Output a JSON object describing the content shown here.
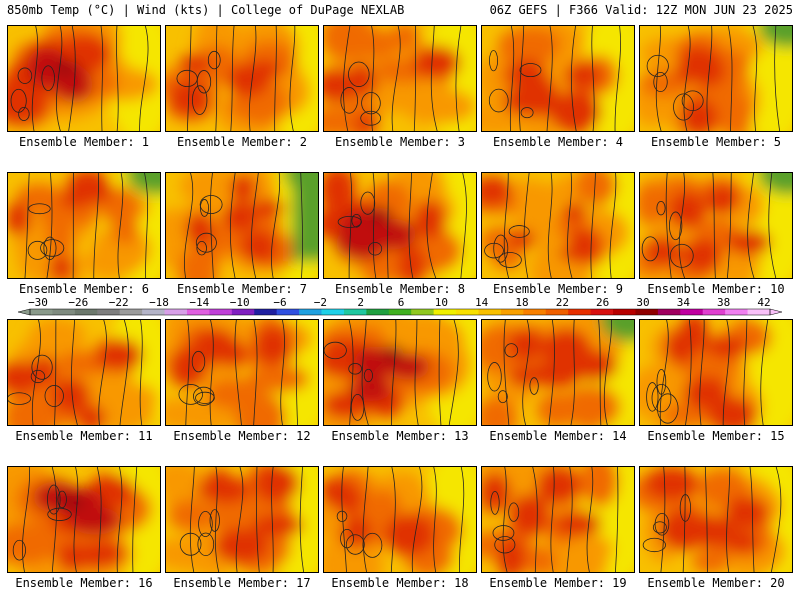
{
  "header": {
    "left": "850mb Temp (°C) | Wind (kts) | College of DuPage NEXLAB",
    "right": "06Z GEFS | F366 Valid: 12Z MON JUN 23 2025"
  },
  "caption_prefix": "Ensemble Member: ",
  "members": [
    1,
    2,
    3,
    4,
    5,
    6,
    7,
    8,
    9,
    10,
    11,
    12,
    13,
    14,
    15,
    16,
    17,
    18,
    19,
    20
  ],
  "colorbar": {
    "labels": [
      "−30",
      "−26",
      "−22",
      "−18",
      "−14",
      "−10",
      "−6",
      "−2",
      "2",
      "6",
      "10",
      "14",
      "18",
      "22",
      "26",
      "30",
      "34",
      "38",
      "42"
    ],
    "colors": [
      "#8a9a8a",
      "#7f8b7f",
      "#6c786c",
      "#7e7e7e",
      "#9c9c9c",
      "#b4b4c8",
      "#d8a0e8",
      "#e060e0",
      "#c040d8",
      "#8020c0",
      "#2020a0",
      "#3050e0",
      "#20a0e0",
      "#20d0e8",
      "#20c8a0",
      "#20a040",
      "#40b020",
      "#90c820",
      "#f0f000",
      "#f8e000",
      "#f8c000",
      "#f8a000",
      "#f88000",
      "#f06000",
      "#e83000",
      "#d81010",
      "#b80000",
      "#900000",
      "#a00060",
      "#c000a0",
      "#e040d0",
      "#f080f0",
      "#f8c0f8"
    ]
  },
  "palette": {
    "green": "#5aa02a",
    "yellow": "#f5e600",
    "light_orange": "#f8c000",
    "orange": "#f89800",
    "dark_orange": "#f06a00",
    "red": "#e03000",
    "deep_red": "#c00a0a",
    "maroon": "#900010",
    "magenta": "#a0106a"
  },
  "panels_intensity": [
    0.95,
    0.55,
    0.6,
    0.7,
    0.6,
    0.45,
    0.55,
    0.85,
    0.4,
    0.55,
    0.6,
    0.6,
    0.85,
    0.65,
    0.6,
    0.95,
    0.75,
    0.7,
    0.7,
    0.7
  ],
  "panels_green_ne": [
    false,
    false,
    false,
    false,
    true,
    true,
    true,
    false,
    false,
    true,
    false,
    false,
    false,
    true,
    false,
    false,
    false,
    false,
    false,
    false
  ],
  "panels_green_e": [
    false,
    false,
    false,
    false,
    false,
    false,
    true,
    false,
    false,
    false,
    false,
    false,
    false,
    false,
    false,
    false,
    false,
    false,
    false,
    false
  ]
}
